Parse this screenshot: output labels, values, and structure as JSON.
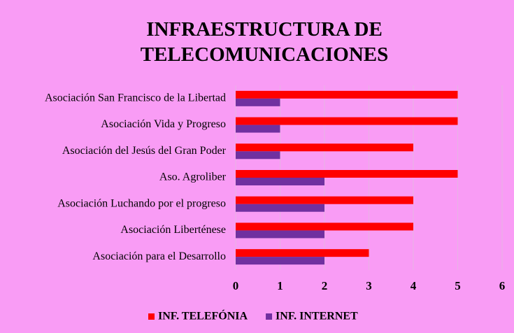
{
  "chart_data": {
    "type": "barh",
    "title": "INFRAESTRUCTURA DE TELECOMUNICACIONES",
    "categories": [
      "Asociación San Francisco de la Libertad",
      "Asociación Vida y Progreso",
      "Asociación del Jesús del Gran Poder",
      "Aso. Agroliber",
      "Asociación Luchando por el progreso",
      "Asociación Liberténese",
      "Asociación para el Desarrollo"
    ],
    "series": [
      {
        "name": "INF. TELEFÓNIA",
        "color": "#ff0000",
        "values": [
          5,
          5,
          4,
          5,
          4,
          4,
          3
        ]
      },
      {
        "name": "INF. INTERNET",
        "color": "#7030a0",
        "values": [
          1,
          1,
          1,
          2,
          2,
          2,
          2
        ]
      }
    ],
    "xlim": [
      0,
      6
    ],
    "xticks": [
      0,
      1,
      2,
      3,
      4,
      5,
      6
    ],
    "grid": true,
    "legend": "bottom"
  }
}
